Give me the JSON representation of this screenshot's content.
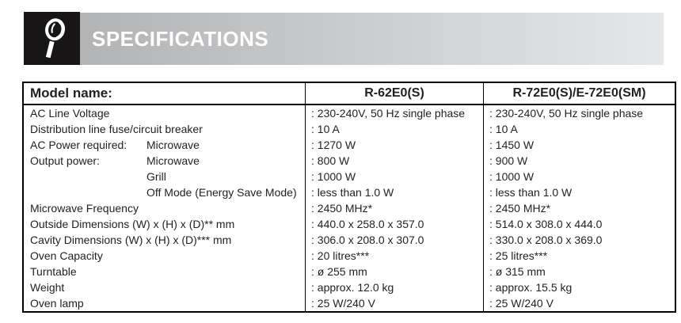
{
  "header": {
    "title": "SPECIFICATIONS",
    "icon": "magnifier-icon"
  },
  "colors": {
    "banner_gradient_left": "#b1b3b5",
    "banner_gradient_right": "#e6e7e8",
    "icon_box_bg": "#171515",
    "title_text": "#ffffff",
    "table_text": "#231f20",
    "table_border": "#000000"
  },
  "table": {
    "columns": [
      "Model name:",
      "R-62E0(S)",
      "R-72E0(S)/E-72E0(SM)"
    ],
    "rows": [
      {
        "label": "AC Line Voltage",
        "sub": "",
        "value1": ": 230-240V, 50 Hz single phase",
        "value2": ": 230-240V, 50 Hz single phase"
      },
      {
        "label": "Distribution line fuse/circuit breaker",
        "sub": "",
        "value1": ": 10 A",
        "value2": ": 10 A"
      },
      {
        "label": "AC Power required:",
        "sub": "Microwave",
        "value1": ": 1270 W",
        "value2": ": 1450 W"
      },
      {
        "label": "Output power:",
        "sub": "Microwave",
        "value1": ": 800 W",
        "value2": ": 900 W"
      },
      {
        "label": "",
        "sub": "Grill",
        "value1": ": 1000 W",
        "value2": ": 1000 W"
      },
      {
        "label": "",
        "sub": "Off Mode (Energy Save Mode)",
        "value1": ": less than 1.0 W",
        "value2": ": less than 1.0 W"
      },
      {
        "label": "Microwave Frequency",
        "sub": "",
        "value1": ": 2450 MHz*",
        "value2": ": 2450 MHz*"
      },
      {
        "label": "Outside Dimensions (W) x (H) x (D)** mm",
        "sub": "",
        "value1": ": 440.0 x 258.0 x 357.0",
        "value2": ": 514.0 x 308.0 x 444.0"
      },
      {
        "label": "Cavity Dimensions (W) x (H) x (D)*** mm",
        "sub": "",
        "value1": ": 306.0 x 208.0 x 307.0",
        "value2": ": 330.0 x 208.0 x 369.0"
      },
      {
        "label": "Oven Capacity",
        "sub": "",
        "value1": ": 20 litres***",
        "value2": ": 25 litres***"
      },
      {
        "label": "Turntable",
        "sub": "",
        "value1": ": ø 255 mm",
        "value2": ": ø 315 mm"
      },
      {
        "label": "Weight",
        "sub": "",
        "value1": ": approx. 12.0 kg",
        "value2": ": approx. 15.5 kg"
      },
      {
        "label": "Oven lamp",
        "sub": "",
        "value1": ": 25 W/240 V",
        "value2": ": 25 W/240 V"
      }
    ]
  }
}
